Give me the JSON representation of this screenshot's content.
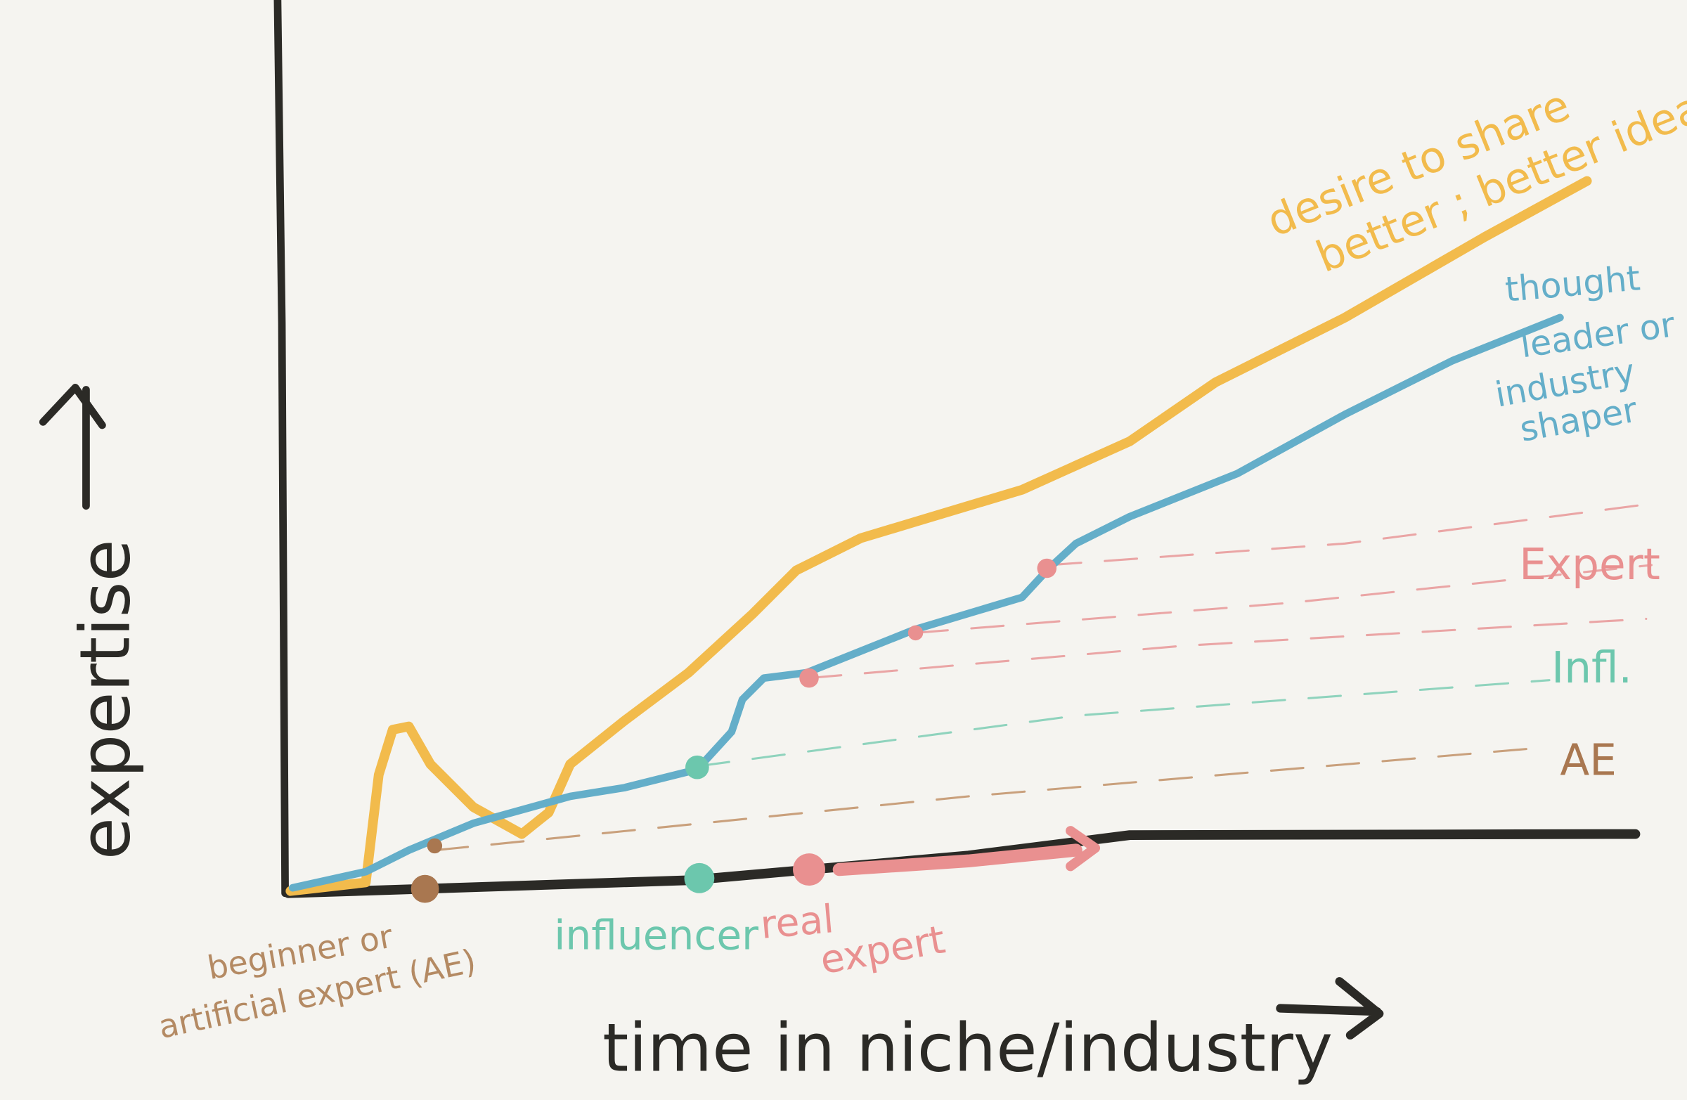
{
  "axes": {
    "y_label": "expertise",
    "x_label": "time in niche/industry"
  },
  "curves": [
    {
      "label_lines": [
        "desire to share",
        "better ; better ideas"
      ]
    },
    {
      "label_lines": [
        "thought",
        "leader or",
        "industry",
        "shaper"
      ]
    }
  ],
  "levels": [
    "Expert",
    "Infl.",
    "AE"
  ],
  "milestones": [
    {
      "label_lines": [
        "beginner or",
        "artificial expert (AE)"
      ]
    },
    {
      "label_lines": [
        "influencer"
      ]
    },
    {
      "label_lines": [
        "real",
        "expert"
      ]
    }
  ]
}
